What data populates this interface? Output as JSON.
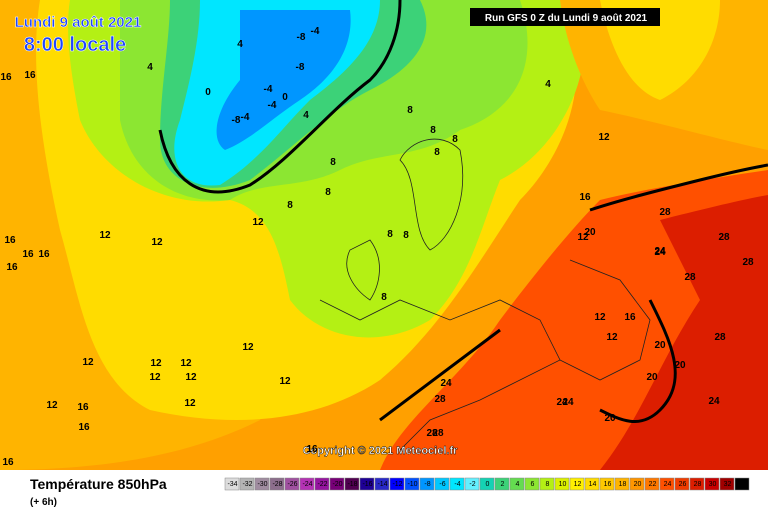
{
  "header": {
    "date": "Lundi 9 août 2021",
    "time": "8:00 locale",
    "run": "Run GFS 0 Z du Lundi 9 août 2021"
  },
  "copyright": "Copyright © 2021 Meteociel.fr",
  "legend": {
    "title": "Température 850hPa",
    "lead": "(+ 6h)",
    "values": [
      -34,
      -32,
      -30,
      -28,
      -26,
      -24,
      -22,
      -20,
      -18,
      -16,
      -14,
      -12,
      -10,
      -8,
      -6,
      -4,
      -2,
      0,
      2,
      4,
      6,
      8,
      10,
      12,
      14,
      16,
      18,
      20,
      22,
      24,
      26,
      28,
      30,
      32,
      34
    ],
    "colors": [
      "#dcdcdc",
      "#b4b4b4",
      "#a08ca0",
      "#8c6e8c",
      "#a050a0",
      "#b432b4",
      "#9614a0",
      "#780078",
      "#500050",
      "#1e0096",
      "#2828c8",
      "#0000ff",
      "#0050ff",
      "#0096ff",
      "#00c8ff",
      "#00e6ff",
      "#64f0ff",
      "#14d2b4",
      "#3cd278",
      "#64dc50",
      "#8ce632",
      "#b4f014",
      "#dcf000",
      "#fff000",
      "#ffdc00",
      "#ffc800",
      "#ffb400",
      "#ff9600",
      "#ff7800",
      "#ff5000",
      "#f03c00",
      "#dc1e00",
      "#c80000",
      "#a00000",
      "#000000"
    ]
  },
  "map_labels": [
    16,
    16,
    16,
    16,
    16,
    16,
    16,
    12,
    12,
    12,
    12,
    12,
    12,
    12,
    12,
    12,
    12,
    12,
    12,
    16,
    16,
    16,
    28,
    28,
    28,
    24,
    24,
    24,
    20,
    20,
    20,
    20,
    24,
    24,
    28,
    28,
    28,
    28,
    28,
    -8,
    -4,
    -8,
    -4,
    -8,
    -4,
    -4,
    0,
    0,
    4,
    4,
    4,
    8,
    8,
    8,
    8,
    8,
    8,
    8,
    8,
    8,
    12,
    12,
    12,
    12,
    8,
    4,
    16,
    16,
    20,
    24
  ]
}
